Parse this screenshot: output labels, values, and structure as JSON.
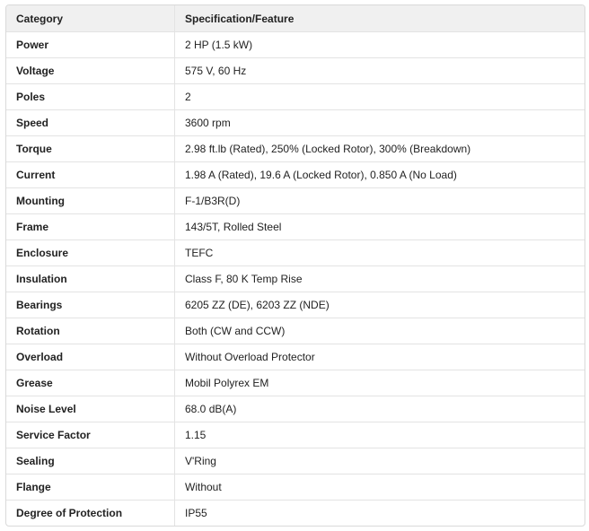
{
  "table": {
    "header": [
      "Category",
      "Specification/Feature"
    ],
    "rows": [
      [
        "Power",
        "2 HP (1.5 kW)"
      ],
      [
        "Voltage",
        "575 V, 60 Hz"
      ],
      [
        "Poles",
        "2"
      ],
      [
        "Speed",
        "3600 rpm"
      ],
      [
        "Torque",
        "2.98 ft.lb (Rated), 250% (Locked Rotor), 300% (Breakdown)"
      ],
      [
        "Current",
        "1.98 A (Rated), 19.6 A (Locked Rotor), 0.850 A (No Load)"
      ],
      [
        "Mounting",
        "F-1/B3R(D)"
      ],
      [
        "Frame",
        "143/5T, Rolled Steel"
      ],
      [
        "Enclosure",
        "TEFC"
      ],
      [
        "Insulation",
        "Class F, 80 K Temp Rise"
      ],
      [
        "Bearings",
        "6205 ZZ (DE), 6203 ZZ (NDE)"
      ],
      [
        "Rotation",
        "Both (CW and CCW)"
      ],
      [
        "Overload",
        "Without Overload Protector"
      ],
      [
        "Grease",
        "Mobil Polyrex EM"
      ],
      [
        "Noise Level",
        "68.0 dB(A)"
      ],
      [
        "Service Factor",
        "1.15"
      ],
      [
        "Sealing",
        "V'Ring"
      ],
      [
        "Flange",
        "Without"
      ],
      [
        "Degree of Protection",
        "IP55"
      ]
    ]
  }
}
